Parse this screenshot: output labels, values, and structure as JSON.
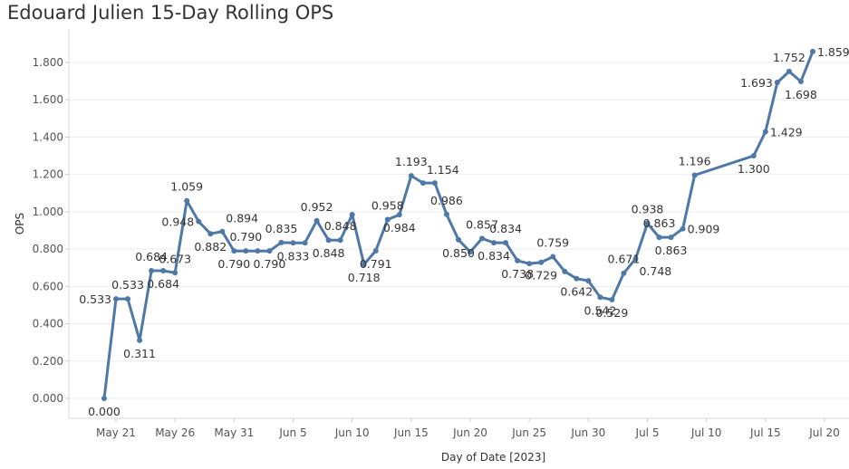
{
  "chart_data": {
    "type": "line",
    "title": "Edouard Julien 15-Day Rolling OPS",
    "xlabel": "Day of Date [2023]",
    "ylabel": "OPS",
    "ylim": [
      -0.1,
      1.95
    ],
    "yticks": [
      "0.000",
      "0.200",
      "0.400",
      "0.600",
      "0.800",
      "1.000",
      "1.200",
      "1.400",
      "1.600",
      "1.800"
    ],
    "xticks": [
      {
        "day": 21,
        "label": "May 21"
      },
      {
        "day": 26,
        "label": "May 26"
      },
      {
        "day": 31,
        "label": "May 31"
      },
      {
        "day": 36,
        "label": "Jun 5"
      },
      {
        "day": 41,
        "label": "Jun 10"
      },
      {
        "day": 46,
        "label": "Jun 15"
      },
      {
        "day": 51,
        "label": "Jun 20"
      },
      {
        "day": 56,
        "label": "Jun 25"
      },
      {
        "day": 61,
        "label": "Jun 30"
      },
      {
        "day": 66,
        "label": "Jul 5"
      },
      {
        "day": 71,
        "label": "Jul 10"
      },
      {
        "day": 76,
        "label": "Jul 15"
      },
      {
        "day": 81,
        "label": "Jul 20"
      }
    ],
    "x_range_days": [
      18,
      83
    ],
    "x_unit": "day offset from May 0, 2023",
    "color": "#4e79a7",
    "points": [
      {
        "day": 20,
        "y": 0.0,
        "label": "0.000",
        "pos": "below"
      },
      {
        "day": 21,
        "y": 0.533,
        "label": "0.533",
        "pos": "left"
      },
      {
        "day": 22,
        "y": 0.533,
        "label": "0.533",
        "pos": "above"
      },
      {
        "day": 23,
        "y": 0.311,
        "label": "0.311",
        "pos": "below"
      },
      {
        "day": 24,
        "y": 0.684,
        "label": "0.684",
        "pos": "above"
      },
      {
        "day": 25,
        "y": 0.684,
        "label": "0.684",
        "pos": "below"
      },
      {
        "day": 26,
        "y": 0.673,
        "label": "0.673",
        "pos": "above"
      },
      {
        "day": 27,
        "y": 1.059,
        "label": "1.059",
        "pos": "above"
      },
      {
        "day": 28,
        "y": 0.948,
        "label": "0.948",
        "pos": "left"
      },
      {
        "day": 29,
        "y": 0.882,
        "label": "0.882",
        "pos": "below"
      },
      {
        "day": 30,
        "y": 0.894,
        "label": "0.894",
        "pos": "above-right"
      },
      {
        "day": 31,
        "y": 0.79,
        "label": "0.790",
        "pos": "below"
      },
      {
        "day": 32,
        "y": 0.79,
        "label": "0.790",
        "pos": "above"
      },
      {
        "day": 33,
        "y": 0.79,
        "label": "",
        "pos": "none"
      },
      {
        "day": 34,
        "y": 0.79,
        "label": "0.790",
        "pos": "below"
      },
      {
        "day": 35,
        "y": 0.835,
        "label": "0.835",
        "pos": "above"
      },
      {
        "day": 36,
        "y": 0.833,
        "label": "0.833",
        "pos": "below"
      },
      {
        "day": 37,
        "y": 0.833,
        "label": "",
        "pos": "none"
      },
      {
        "day": 38,
        "y": 0.952,
        "label": "0.952",
        "pos": "above"
      },
      {
        "day": 39,
        "y": 0.848,
        "label": "0.848",
        "pos": "below"
      },
      {
        "day": 40,
        "y": 0.848,
        "label": "0.848",
        "pos": "above"
      },
      {
        "day": 41,
        "y": 0.985,
        "label": "",
        "pos": "none"
      },
      {
        "day": 42,
        "y": 0.718,
        "label": "0.718",
        "pos": "below"
      },
      {
        "day": 43,
        "y": 0.791,
        "label": "0.791",
        "pos": "below"
      },
      {
        "day": 44,
        "y": 0.958,
        "label": "0.958",
        "pos": "above"
      },
      {
        "day": 45,
        "y": 0.984,
        "label": "0.984",
        "pos": "below"
      },
      {
        "day": 46,
        "y": 1.193,
        "label": "1.193",
        "pos": "above"
      },
      {
        "day": 47,
        "y": 1.154,
        "label": "1.154",
        "pos": "above-right"
      },
      {
        "day": 48,
        "y": 1.154,
        "label": "",
        "pos": "none"
      },
      {
        "day": 49,
        "y": 0.986,
        "label": "0.986",
        "pos": "above"
      },
      {
        "day": 50,
        "y": 0.85,
        "label": "0.850",
        "pos": "below"
      },
      {
        "day": 51,
        "y": 0.785,
        "label": "",
        "pos": "none"
      },
      {
        "day": 52,
        "y": 0.857,
        "label": "0.857",
        "pos": "above"
      },
      {
        "day": 53,
        "y": 0.834,
        "label": "0.834",
        "pos": "below"
      },
      {
        "day": 54,
        "y": 0.834,
        "label": "0.834",
        "pos": "above"
      },
      {
        "day": 55,
        "y": 0.738,
        "label": "0.738",
        "pos": "below"
      },
      {
        "day": 56,
        "y": 0.722,
        "label": "",
        "pos": "none"
      },
      {
        "day": 57,
        "y": 0.729,
        "label": "0.729",
        "pos": "below"
      },
      {
        "day": 58,
        "y": 0.759,
        "label": "0.759",
        "pos": "above"
      },
      {
        "day": 59,
        "y": 0.68,
        "label": "",
        "pos": "none"
      },
      {
        "day": 60,
        "y": 0.642,
        "label": "0.642",
        "pos": "below"
      },
      {
        "day": 61,
        "y": 0.63,
        "label": "",
        "pos": "none"
      },
      {
        "day": 62,
        "y": 0.542,
        "label": "0.542",
        "pos": "below"
      },
      {
        "day": 63,
        "y": 0.529,
        "label": "0.529",
        "pos": "below"
      },
      {
        "day": 64,
        "y": 0.671,
        "label": "0.671",
        "pos": "above"
      },
      {
        "day": 65,
        "y": 0.748,
        "label": "0.748",
        "pos": "below-right"
      },
      {
        "day": 66,
        "y": 0.938,
        "label": "0.938",
        "pos": "above"
      },
      {
        "day": 67,
        "y": 0.863,
        "label": "0.863",
        "pos": "above"
      },
      {
        "day": 68,
        "y": 0.863,
        "label": "0.863",
        "pos": "below"
      },
      {
        "day": 69,
        "y": 0.909,
        "label": "0.909",
        "pos": "right"
      },
      {
        "day": 70,
        "y": 1.196,
        "label": "1.196",
        "pos": "above"
      },
      {
        "day": 75,
        "y": 1.3,
        "label": "1.300",
        "pos": "below"
      },
      {
        "day": 76,
        "y": 1.429,
        "label": "1.429",
        "pos": "right"
      },
      {
        "day": 77,
        "y": 1.693,
        "label": "1.693",
        "pos": "left"
      },
      {
        "day": 78,
        "y": 1.752,
        "label": "1.752",
        "pos": "above"
      },
      {
        "day": 79,
        "y": 1.698,
        "label": "1.698",
        "pos": "below"
      },
      {
        "day": 80,
        "y": 1.859,
        "label": "1.859",
        "pos": "right"
      }
    ]
  }
}
